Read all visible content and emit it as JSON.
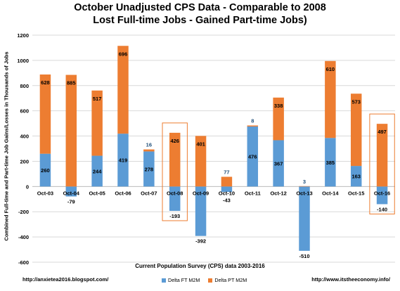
{
  "header": {
    "title_line1": "October Unadjusted CPS Data - Comparable to 2008",
    "title_line2": "Lost Full-time Jobs - Gained Part-time Jobs)"
  },
  "footer": {
    "url_left": "http://anxietea2016.blogspot.com/",
    "url_right": "http://www.itstheeconomy.info/"
  },
  "colors": {
    "ft": "#5b9bd5",
    "pt": "#ed7d31",
    "highlight": "#ed7d31",
    "grid": "#d9d9d9"
  },
  "chart_data": {
    "type": "bar",
    "stacked": true,
    "xlabel": "Current Population Survey (CPS) data 2003-2016",
    "ylabel": "Combined Full-time and Part-time Job Gains/Losses in Thousands of Jobs",
    "ylim": [
      -600,
      1200
    ],
    "yticks": [
      -600,
      -400,
      -200,
      0,
      200,
      400,
      600,
      800,
      1000,
      1200
    ],
    "grid": true,
    "legend_position": "bottom",
    "categories": [
      "Oct-03",
      "Oct-04",
      "Oct-05",
      "Oct-06",
      "Oct-07",
      "Oct-08",
      "Oct-09",
      "Oct-10",
      "Oct-11",
      "Oct-12",
      "Oct-13",
      "Oct-14",
      "Oct-15",
      "Oct-16"
    ],
    "highlighted": [
      "Oct-08",
      "Oct-16"
    ],
    "series": [
      {
        "name": "Delta FT M2M",
        "values": [
          260,
          -79,
          244,
          419,
          278,
          -193,
          -392,
          -43,
          476,
          367,
          -510,
          385,
          163,
          -140
        ]
      },
      {
        "name": "Delta PT M2M",
        "values": [
          628,
          885,
          517,
          696,
          16,
          426,
          401,
          77,
          8,
          338,
          3,
          610,
          573,
          497
        ]
      }
    ]
  }
}
